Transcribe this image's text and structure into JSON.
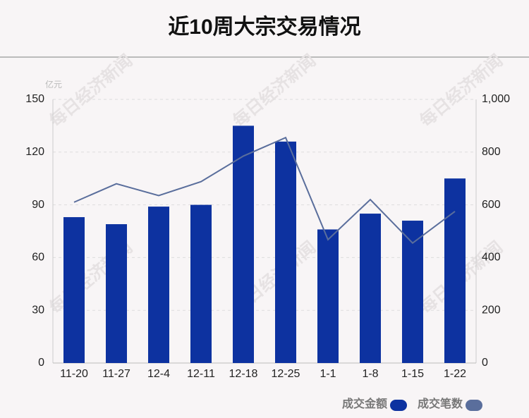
{
  "chart_data": {
    "type": "bar",
    "title": "近10周大宗交易情况",
    "ylabel": "亿元",
    "watermark": "每日经济新闻",
    "categories": [
      "11-20",
      "11-27",
      "12-4",
      "12-11",
      "12-18",
      "12-25",
      "1-1",
      "1-8",
      "1-15",
      "1-22"
    ],
    "series": [
      {
        "name": "成交金额",
        "color": "#0d32a0",
        "values": [
          83,
          79,
          89,
          90,
          135,
          126,
          76,
          85,
          81,
          105
        ]
      },
      {
        "name": "成交笔数",
        "color": "#5a6e9c",
        "type": "line",
        "axis": "y2",
        "values": [
          610,
          680,
          635,
          688,
          785,
          855,
          468,
          620,
          455,
          575
        ]
      }
    ],
    "ylim": [
      0,
      150
    ],
    "yticks": [
      0,
      30,
      60,
      90,
      120,
      150
    ],
    "y2lim": [
      0,
      1000
    ],
    "y2ticks": [
      0,
      200,
      400,
      600,
      800,
      {
        "value": 1000,
        "label": "1,000"
      }
    ],
    "grid": true
  }
}
